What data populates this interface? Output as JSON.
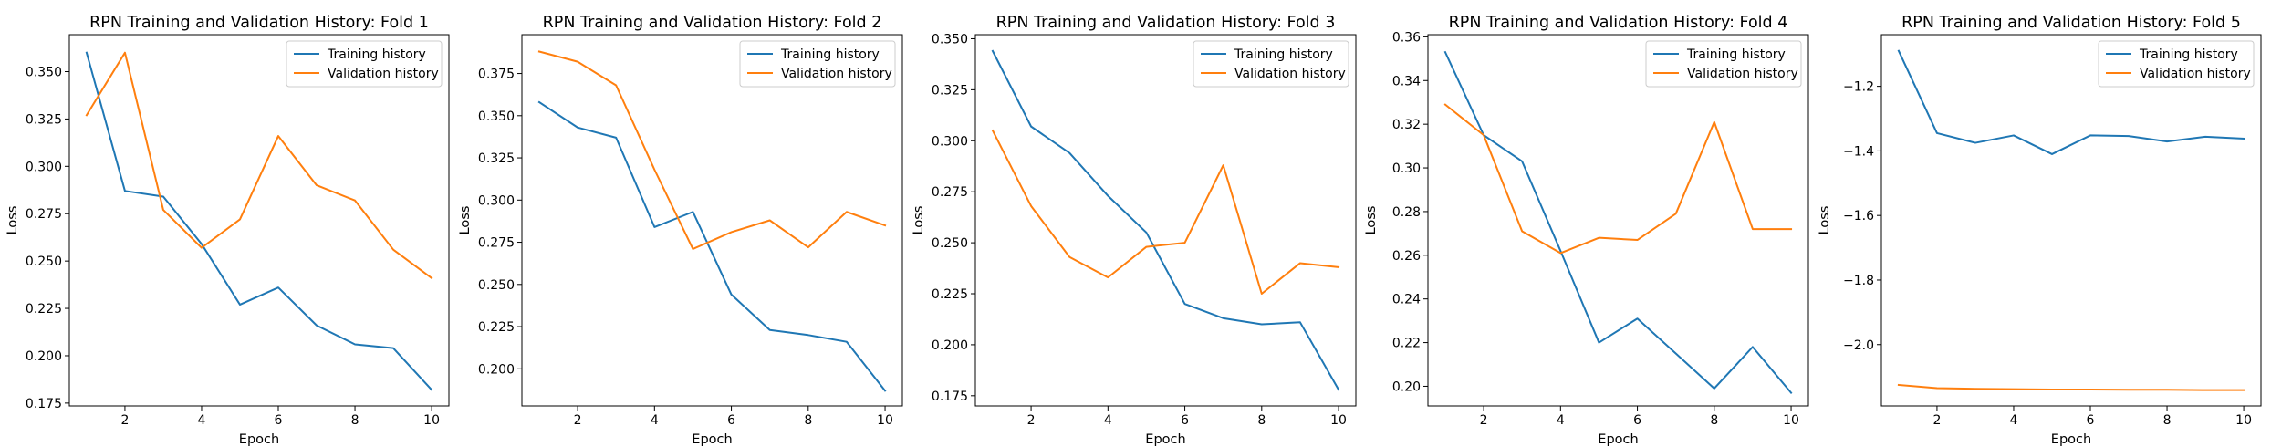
{
  "chart_data": [
    {
      "type": "line",
      "title": "RPN Training and Validation History: Fold 1",
      "xlabel": "Epoch",
      "ylabel": "Loss",
      "xlim": [
        0.55,
        10.45
      ],
      "ylim": [
        0.1735,
        0.3695
      ],
      "xticks": [
        2,
        4,
        6,
        8,
        10
      ],
      "xtick_labels": [
        "2",
        "4",
        "6",
        "8",
        "10"
      ],
      "yticks": [
        0.175,
        0.2,
        0.225,
        0.25,
        0.275,
        0.3,
        0.325,
        0.35
      ],
      "ytick_labels": [
        "0.175",
        "0.200",
        "0.225",
        "0.250",
        "0.275",
        "0.300",
        "0.325",
        "0.350"
      ],
      "legend_position": "top-right",
      "x": [
        1,
        2,
        3,
        4,
        5,
        6,
        7,
        8,
        9,
        10
      ],
      "series": [
        {
          "name": "Training history",
          "color": "#1f77b4",
          "values": [
            0.36,
            0.287,
            0.284,
            0.259,
            0.227,
            0.236,
            0.216,
            0.206,
            0.204,
            0.182
          ]
        },
        {
          "name": "Validation history",
          "color": "#ff7f0e",
          "values": [
            0.327,
            0.36,
            0.277,
            0.257,
            0.272,
            0.316,
            0.29,
            0.282,
            0.256,
            0.241
          ]
        }
      ]
    },
    {
      "type": "line",
      "title": "RPN Training and Validation History: Fold 2",
      "xlabel": "Epoch",
      "ylabel": "Loss",
      "xlim": [
        0.55,
        10.45
      ],
      "ylim": [
        0.178,
        0.398
      ],
      "xticks": [
        2,
        4,
        6,
        8,
        10
      ],
      "xtick_labels": [
        "2",
        "4",
        "6",
        "8",
        "10"
      ],
      "yticks": [
        0.2,
        0.225,
        0.25,
        0.275,
        0.3,
        0.325,
        0.35,
        0.375
      ],
      "ytick_labels": [
        "0.200",
        "0.225",
        "0.250",
        "0.275",
        "0.300",
        "0.325",
        "0.350",
        "0.375"
      ],
      "legend_position": "top-right",
      "x": [
        1,
        2,
        3,
        4,
        5,
        6,
        7,
        8,
        9,
        10
      ],
      "series": [
        {
          "name": "Training history",
          "color": "#1f77b4",
          "values": [
            0.358,
            0.343,
            0.337,
            0.284,
            0.293,
            0.244,
            0.223,
            0.22,
            0.216,
            0.187
          ]
        },
        {
          "name": "Validation history",
          "color": "#ff7f0e",
          "values": [
            0.388,
            0.382,
            0.368,
            0.318,
            0.271,
            0.281,
            0.288,
            0.272,
            0.293,
            0.285
          ]
        }
      ]
    },
    {
      "type": "line",
      "title": "RPN Training and Validation History: Fold 3",
      "xlabel": "Epoch",
      "ylabel": "Loss",
      "xlim": [
        0.55,
        10.45
      ],
      "ylim": [
        0.17,
        0.352
      ],
      "xticks": [
        2,
        4,
        6,
        8,
        10
      ],
      "xtick_labels": [
        "2",
        "4",
        "6",
        "8",
        "10"
      ],
      "yticks": [
        0.175,
        0.2,
        0.225,
        0.25,
        0.275,
        0.3,
        0.325,
        0.35
      ],
      "ytick_labels": [
        "0.175",
        "0.200",
        "0.225",
        "0.250",
        "0.275",
        "0.300",
        "0.325",
        "0.350"
      ],
      "legend_position": "top-right",
      "x": [
        1,
        2,
        3,
        4,
        5,
        6,
        7,
        8,
        9,
        10
      ],
      "series": [
        {
          "name": "Training history",
          "color": "#1f77b4",
          "values": [
            0.344,
            0.307,
            0.294,
            0.273,
            0.255,
            0.22,
            0.213,
            0.21,
            0.211,
            0.178
          ]
        },
        {
          "name": "Validation history",
          "color": "#ff7f0e",
          "values": [
            0.305,
            0.268,
            0.243,
            0.233,
            0.248,
            0.25,
            0.288,
            0.225,
            0.24,
            0.238
          ]
        }
      ]
    },
    {
      "type": "line",
      "title": "RPN Training and Validation History: Fold 4",
      "xlabel": "Epoch",
      "ylabel": "Loss",
      "xlim": [
        0.55,
        10.45
      ],
      "ylim": [
        0.191,
        0.361
      ],
      "xticks": [
        2,
        4,
        6,
        8,
        10
      ],
      "xtick_labels": [
        "2",
        "4",
        "6",
        "8",
        "10"
      ],
      "yticks": [
        0.2,
        0.22,
        0.24,
        0.26,
        0.28,
        0.3,
        0.32,
        0.34,
        0.36
      ],
      "ytick_labels": [
        "0.20",
        "0.22",
        "0.24",
        "0.26",
        "0.28",
        "0.30",
        "0.32",
        "0.34",
        "0.36"
      ],
      "legend_position": "top-right",
      "x": [
        1,
        2,
        3,
        4,
        5,
        6,
        7,
        8,
        9,
        10
      ],
      "series": [
        {
          "name": "Training history",
          "color": "#1f77b4",
          "values": [
            0.353,
            0.315,
            0.303,
            0.262,
            0.22,
            0.231,
            0.215,
            0.199,
            0.218,
            0.197
          ]
        },
        {
          "name": "Validation history",
          "color": "#ff7f0e",
          "values": [
            0.329,
            0.315,
            0.271,
            0.261,
            0.268,
            0.267,
            0.279,
            0.321,
            0.272,
            0.272
          ]
        }
      ]
    },
    {
      "type": "line",
      "title": "RPN Training and Validation History: Fold 5",
      "xlabel": "Epoch",
      "ylabel": "Loss",
      "xlim": [
        0.55,
        10.45
      ],
      "ylim": [
        -2.19,
        -1.04
      ],
      "xticks": [
        2,
        4,
        6,
        8,
        10
      ],
      "xtick_labels": [
        "2",
        "4",
        "6",
        "8",
        "10"
      ],
      "yticks": [
        -2.0,
        -1.8,
        -1.6,
        -1.4,
        -1.2
      ],
      "ytick_labels": [
        "−2.0",
        "−1.8",
        "−1.6",
        "−1.4",
        "−1.2"
      ],
      "legend_position": "top-right",
      "x": [
        1,
        2,
        3,
        4,
        5,
        6,
        7,
        8,
        9,
        10
      ],
      "series": [
        {
          "name": "Training history",
          "color": "#1f77b4",
          "values": [
            -1.09,
            -1.345,
            -1.375,
            -1.352,
            -1.41,
            -1.352,
            -1.354,
            -1.371,
            -1.356,
            -1.362
          ]
        },
        {
          "name": "Validation history",
          "color": "#ff7f0e",
          "values": [
            -2.125,
            -2.135,
            -2.137,
            -2.138,
            -2.139,
            -2.139,
            -2.14,
            -2.14,
            -2.141,
            -2.141
          ]
        }
      ]
    }
  ]
}
